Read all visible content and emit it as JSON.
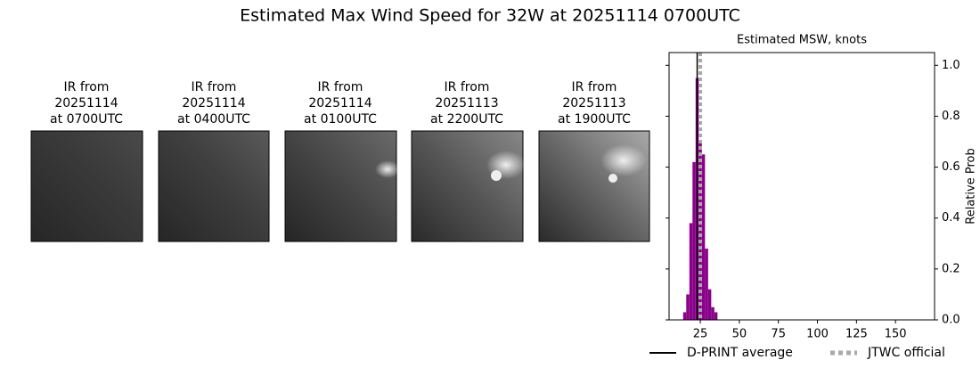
{
  "title": "Estimated Max Wind Speed for 32W at 20251114 0700UTC",
  "panels": [
    {
      "lines": [
        "IR from",
        "20251114",
        "at 0700UTC"
      ]
    },
    {
      "lines": [
        "IR from",
        "20251114",
        "at 0400UTC"
      ]
    },
    {
      "lines": [
        "IR from",
        "20251114",
        "at 0100UTC"
      ]
    },
    {
      "lines": [
        "IR from",
        "20251113",
        "at 2200UTC"
      ]
    },
    {
      "lines": [
        "IR from",
        "20251113",
        "at 1900UTC"
      ]
    }
  ],
  "chart_data": {
    "type": "histogram",
    "title": "Estimated MSW, knots",
    "y_label": "Relative Prob",
    "bins": [
      14,
      16,
      18,
      20,
      22,
      24,
      26,
      28,
      30,
      32,
      34,
      36
    ],
    "values": [
      0.03,
      0.1,
      0.38,
      0.62,
      0.95,
      0.7,
      0.65,
      0.28,
      0.12,
      0.05,
      0.03
    ],
    "color": "#8b008b",
    "xlim": [
      5,
      175
    ],
    "xticks": [
      25,
      50,
      75,
      100,
      125,
      150
    ],
    "ylim": [
      0,
      1.05
    ],
    "yticks": [
      {
        "value": 0,
        "label": "0.0"
      },
      {
        "value": 0.2,
        "label": "0.2"
      },
      {
        "value": 0.4,
        "label": "0.4"
      },
      {
        "value": 0.6,
        "label": "0.6"
      },
      {
        "value": 0.8,
        "label": "0.8"
      },
      {
        "value": 1,
        "label": "1.0"
      }
    ],
    "vlines": [
      {
        "name": "D-PRINT average",
        "x": 23,
        "color": "#000000",
        "style": "solid"
      },
      {
        "name": "JTWC official",
        "x": 25,
        "color": "#a9a9a9",
        "style": "dotted"
      }
    ]
  }
}
